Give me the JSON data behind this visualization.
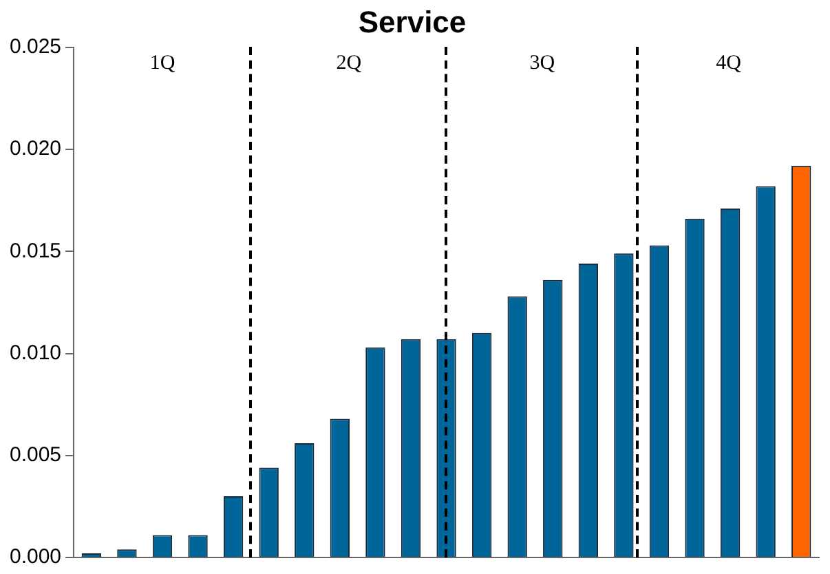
{
  "chart_data": {
    "type": "bar",
    "title": "Service",
    "categories": [
      null,
      null,
      null,
      null,
      null,
      null,
      null,
      null,
      null,
      null,
      null,
      null,
      null,
      null,
      null,
      null,
      null,
      null,
      null,
      null,
      null
    ],
    "values": [
      0.0002,
      0.0004,
      0.0011,
      0.0011,
      0.003,
      0.0044,
      0.0056,
      0.0068,
      0.0103,
      0.0107,
      0.0107,
      0.011,
      0.0128,
      0.0136,
      0.0144,
      0.0149,
      0.0153,
      0.0166,
      0.0171,
      0.0182,
      0.0192
    ],
    "colors": [
      "#006699",
      "#006699",
      "#006699",
      "#006699",
      "#006699",
      "#006699",
      "#006699",
      "#006699",
      "#006699",
      "#006699",
      "#006699",
      "#006699",
      "#006699",
      "#006699",
      "#006699",
      "#006699",
      "#006699",
      "#006699",
      "#006699",
      "#006699",
      "#ff6600"
    ],
    "ylim": [
      0,
      0.025
    ],
    "yticks": [
      {
        "value": 0,
        "label": "0.000"
      },
      {
        "value": 0.005,
        "label": "0.005"
      },
      {
        "value": 0.01,
        "label": "0.010"
      },
      {
        "value": 0.015,
        "label": "0.015"
      },
      {
        "value": 0.02,
        "label": "0.020"
      },
      {
        "value": 0.025,
        "label": "0.025"
      }
    ],
    "annotations": [
      "1Q",
      "2Q",
      "3Q",
      "4Q"
    ],
    "tick_labels": "y",
    "grid": false,
    "legend": false
  }
}
